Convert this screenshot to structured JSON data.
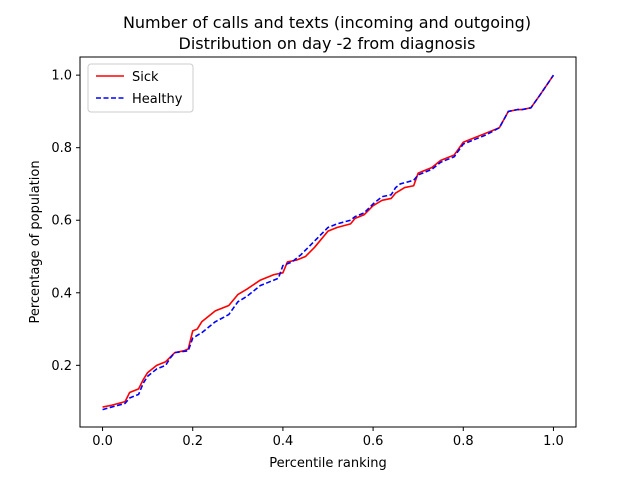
{
  "chart_data": {
    "type": "line",
    "title": "Number of calls and texts (incoming and outgoing)",
    "subtitle": "Distribution on day -2 from diagnosis",
    "xlabel": "Percentile ranking",
    "ylabel": "Percentage of population",
    "xlim": [
      -0.05,
      1.05
    ],
    "ylim": [
      0.03,
      1.05
    ],
    "xticks": [
      "0.0",
      "0.2",
      "0.4",
      "0.6",
      "0.8",
      "1.0"
    ],
    "yticks": [
      "0.2",
      "0.4",
      "0.6",
      "0.8",
      "1.0"
    ],
    "legend_position": "top-left",
    "grid": false,
    "series": [
      {
        "name": "Sick",
        "color": "#ff0000",
        "style": "solid",
        "x": [
          0.0,
          0.02,
          0.05,
          0.06,
          0.08,
          0.09,
          0.1,
          0.12,
          0.14,
          0.16,
          0.18,
          0.19,
          0.2,
          0.21,
          0.22,
          0.25,
          0.28,
          0.3,
          0.32,
          0.35,
          0.38,
          0.4,
          0.41,
          0.43,
          0.45,
          0.47,
          0.5,
          0.52,
          0.55,
          0.56,
          0.58,
          0.6,
          0.62,
          0.64,
          0.65,
          0.67,
          0.69,
          0.7,
          0.71,
          0.73,
          0.75,
          0.78,
          0.8,
          0.82,
          0.85,
          0.88,
          0.9,
          0.92,
          0.93,
          0.95,
          0.97,
          1.0
        ],
        "values": [
          0.085,
          0.09,
          0.1,
          0.125,
          0.135,
          0.16,
          0.18,
          0.2,
          0.21,
          0.235,
          0.24,
          0.245,
          0.295,
          0.3,
          0.32,
          0.35,
          0.365,
          0.395,
          0.41,
          0.435,
          0.45,
          0.455,
          0.485,
          0.49,
          0.5,
          0.525,
          0.57,
          0.58,
          0.59,
          0.605,
          0.615,
          0.64,
          0.655,
          0.66,
          0.675,
          0.69,
          0.695,
          0.73,
          0.735,
          0.745,
          0.765,
          0.78,
          0.815,
          0.825,
          0.84,
          0.855,
          0.9,
          0.905,
          0.905,
          0.91,
          0.945,
          1.0
        ]
      },
      {
        "name": "Healthy",
        "color": "#0000ff",
        "style": "dashed",
        "x": [
          0.0,
          0.02,
          0.05,
          0.06,
          0.08,
          0.09,
          0.1,
          0.12,
          0.14,
          0.15,
          0.16,
          0.19,
          0.2,
          0.22,
          0.25,
          0.28,
          0.3,
          0.32,
          0.35,
          0.38,
          0.39,
          0.4,
          0.42,
          0.44,
          0.46,
          0.48,
          0.5,
          0.52,
          0.55,
          0.56,
          0.58,
          0.6,
          0.62,
          0.64,
          0.65,
          0.66,
          0.69,
          0.7,
          0.71,
          0.73,
          0.75,
          0.78,
          0.8,
          0.82,
          0.85,
          0.88,
          0.9,
          0.92,
          0.93,
          0.95,
          0.97,
          1.0
        ],
        "values": [
          0.078,
          0.085,
          0.095,
          0.11,
          0.12,
          0.15,
          0.17,
          0.19,
          0.2,
          0.22,
          0.235,
          0.24,
          0.275,
          0.29,
          0.32,
          0.34,
          0.375,
          0.39,
          0.42,
          0.435,
          0.44,
          0.475,
          0.485,
          0.505,
          0.53,
          0.555,
          0.58,
          0.59,
          0.6,
          0.61,
          0.62,
          0.645,
          0.665,
          0.67,
          0.69,
          0.7,
          0.71,
          0.725,
          0.73,
          0.74,
          0.76,
          0.775,
          0.81,
          0.82,
          0.835,
          0.855,
          0.9,
          0.905,
          0.905,
          0.91,
          0.945,
          1.0
        ]
      }
    ]
  }
}
